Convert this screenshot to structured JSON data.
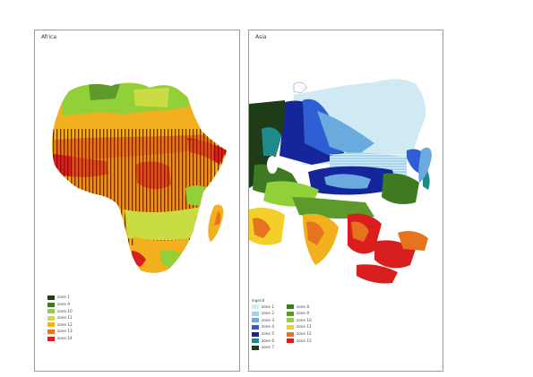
{
  "panels": {
    "africa": {
      "title": "Africa",
      "legend": {
        "title": "",
        "items": [
          {
            "label": "zone 1",
            "color": "#1e3d16"
          },
          {
            "label": "zone 9",
            "color": "#3e7a22"
          },
          {
            "label": "zone 10",
            "color": "#92d03a"
          },
          {
            "label": "zone 11",
            "color": "#c9dc44"
          },
          {
            "label": "zone 12",
            "color": "#f2b01e"
          },
          {
            "label": "zone 13",
            "color": "#e6741e"
          },
          {
            "label": "zone 14",
            "color": "#d81e1e"
          }
        ]
      }
    },
    "asia": {
      "title": "Asia",
      "legend": {
        "title": "legend",
        "items": [
          {
            "label": "zone 1",
            "color": "#cfeaf2"
          },
          {
            "label": "zone 2",
            "color": "#a5d4ec"
          },
          {
            "label": "zone 3",
            "color": "#6aaadf"
          },
          {
            "label": "zone 4",
            "color": "#2d5fd3"
          },
          {
            "label": "zone 5",
            "color": "#15269a"
          },
          {
            "label": "zone 6",
            "color": "#1f8a8a"
          },
          {
            "label": "zone 7",
            "color": "#1e3d16"
          },
          {
            "label": "zone 8",
            "color": "#3e7a22"
          },
          {
            "label": "zone 9",
            "color": "#5d9a2c"
          },
          {
            "label": "zone 10",
            "color": "#92d03a"
          },
          {
            "label": "zone 11",
            "color": "#f2cf2a"
          },
          {
            "label": "zone 12",
            "color": "#e6741e"
          },
          {
            "label": "zone 13",
            "color": "#d81e1e"
          }
        ]
      }
    }
  }
}
